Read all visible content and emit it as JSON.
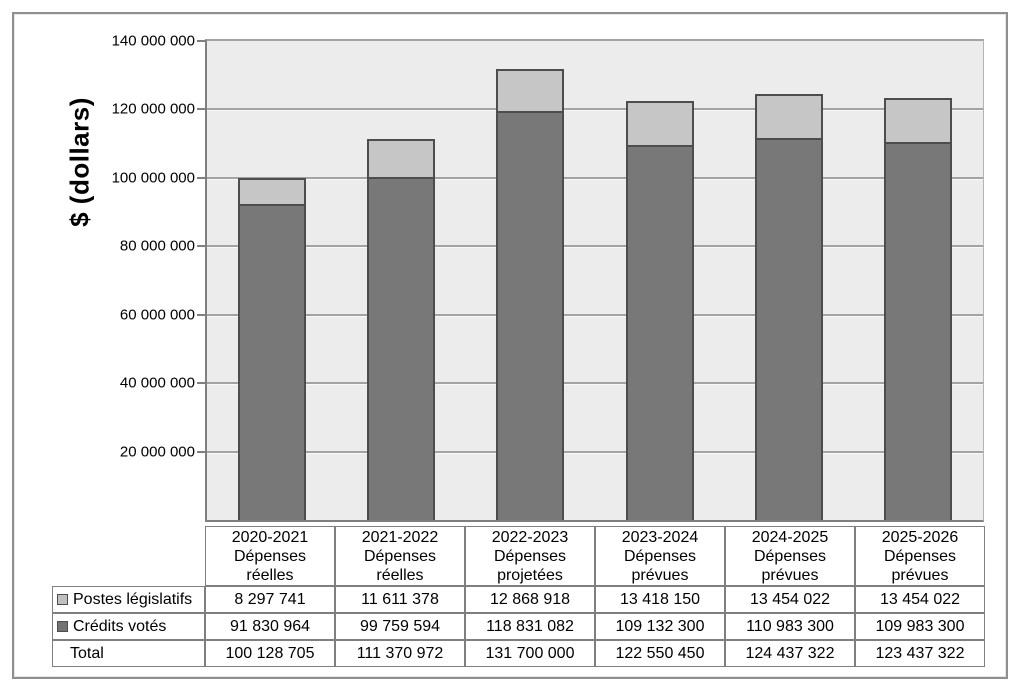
{
  "figure": {
    "background": "#ffffff",
    "border_color": "#8f8f8f"
  },
  "chart_data": {
    "type": "bar",
    "stacked": true,
    "title": "",
    "ylabel": "$ (dollars)",
    "xlabel": "",
    "ylim": [
      0,
      140000000
    ],
    "grid": true,
    "legend_position": "table-rows-left",
    "plot_background": "#ececec",
    "gridline_color": "#a3a3a3",
    "axis_line_color": "#7f7f7f",
    "yticks": [
      {
        "value": 140000000,
        "label": "140 000 000"
      },
      {
        "value": 120000000,
        "label": "120 000 000"
      },
      {
        "value": 100000000,
        "label": "100 000 000"
      },
      {
        "value": 80000000,
        "label": "80 000 000"
      },
      {
        "value": 60000000,
        "label": "60 000 000"
      },
      {
        "value": 40000000,
        "label": "40 000 000"
      },
      {
        "value": 20000000,
        "label": "20 000 000"
      }
    ],
    "categories": [
      {
        "year": "2020-2021",
        "label_lines": [
          "2020-2021",
          "Dépenses",
          "réelles"
        ]
      },
      {
        "year": "2021-2022",
        "label_lines": [
          "2021-2022",
          "Dépenses",
          "réelles"
        ]
      },
      {
        "year": "2022-2023",
        "label_lines": [
          "2022-2023",
          "Dépenses",
          "projetées"
        ]
      },
      {
        "year": "2023-2024",
        "label_lines": [
          "2023-2024",
          "Dépenses",
          "prévues"
        ]
      },
      {
        "year": "2024-2025",
        "label_lines": [
          "2024-2025",
          "Dépenses",
          "prévues"
        ]
      },
      {
        "year": "2025-2026",
        "label_lines": [
          "2025-2026",
          "Dépenses",
          "prévues"
        ]
      }
    ],
    "series": [
      {
        "key": "postes-legislatifs",
        "name": "Postes législatifs",
        "color": "#c6c6c6",
        "swatch_color": "#bfbfbf",
        "border_color": "#4d4d4d",
        "stack_order": "top",
        "values": [
          8297741,
          11611378,
          12868918,
          13418150,
          13454022,
          13454022
        ],
        "display_values": [
          "8 297 741",
          "11 611 378",
          "12 868 918",
          "13 418 150",
          "13 454 022",
          "13 454 022"
        ]
      },
      {
        "key": "credits-votes",
        "name": "Crédits votés",
        "color": "#787878",
        "swatch_color": "#737373",
        "border_color": "#4d4d4d",
        "stack_order": "bottom",
        "values": [
          91830964,
          99759594,
          118831082,
          109132300,
          110983300,
          109983300
        ],
        "display_values": [
          "91 830 964",
          "99 759 594",
          "118 831 082",
          "109 132 300",
          "110 983 300",
          "109 983 300"
        ]
      }
    ],
    "total_row": {
      "label": "Total",
      "values": [
        100128705,
        111370972,
        131700000,
        122550450,
        124437322,
        123437322
      ],
      "display_values": [
        "100 128 705",
        "111 370 972",
        "131 700 000",
        "122 550 450",
        "124 437 322",
        "123 437 322"
      ]
    }
  }
}
